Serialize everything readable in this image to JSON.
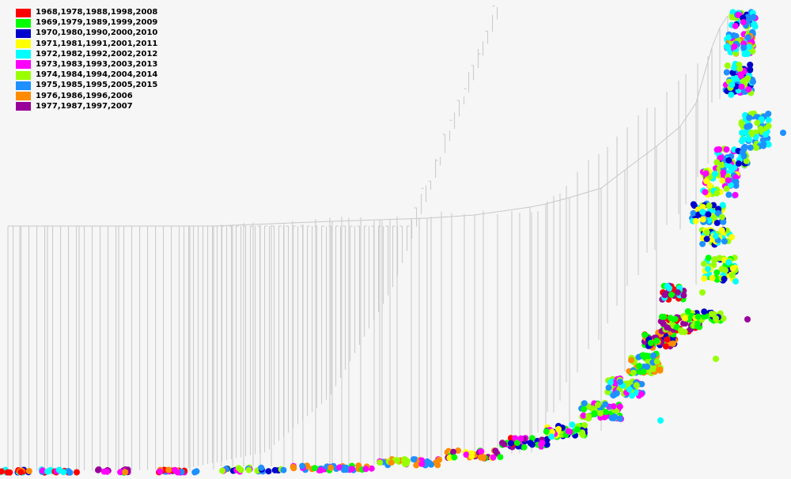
{
  "legend": {
    "items": [
      {
        "label": "1968,1978,1988,1998,2008",
        "color": "#ff0000"
      },
      {
        "label": "1969,1979,1989,1999,2009",
        "color": "#00ff00"
      },
      {
        "label": "1970,1980,1990,2000,2010",
        "color": "#0000cc"
      },
      {
        "label": "1971,1981,1991,2001,2011",
        "color": "#ffff00"
      },
      {
        "label": "1972,1982,1992,2002,2012",
        "color": "#00ffff"
      },
      {
        "label": "1973,1983,1993,2003,2013",
        "color": "#ff00ff"
      },
      {
        "label": "1974,1984,1994,2004,2014",
        "color": "#99ff00"
      },
      {
        "label": "1975,1985,1995,2005,2015",
        "color": "#1e90ff"
      },
      {
        "label": "1976,1986,1996,2006",
        "color": "#ff8c00"
      },
      {
        "label": "1977,1987,1997,2007",
        "color": "#990099"
      }
    ]
  },
  "tree": {
    "branch_color": "#c8c8c8",
    "tip_shape": "circle"
  }
}
